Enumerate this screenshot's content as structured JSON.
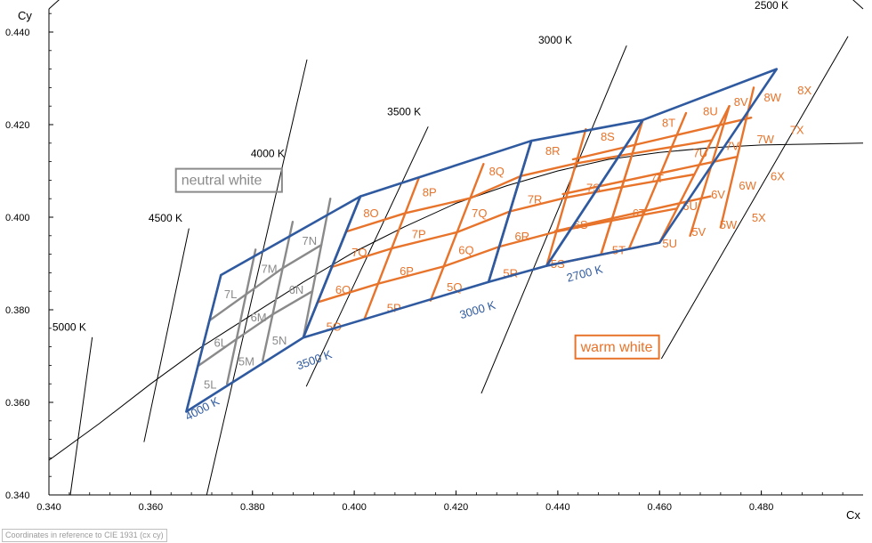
{
  "chart_data": {
    "type": "scatter",
    "title": "",
    "xlabel": "Cx",
    "ylabel": "Cy",
    "xlim": [
      0.34,
      0.5
    ],
    "ylim": [
      0.34,
      0.445
    ],
    "xticks": [
      "0.340",
      "0.360",
      "0.380",
      "0.400",
      "0.420",
      "0.440",
      "0.460",
      "0.480"
    ],
    "yticks": [
      "0.340",
      "0.360",
      "0.380",
      "0.400",
      "0.420",
      "0.440"
    ],
    "grid": false,
    "planckian_locus": [
      [
        0.34,
        0.3475
      ],
      [
        0.35,
        0.3555
      ],
      [
        0.36,
        0.364
      ],
      [
        0.37,
        0.372
      ],
      [
        0.38,
        0.379
      ],
      [
        0.39,
        0.386
      ],
      [
        0.4,
        0.3925
      ],
      [
        0.41,
        0.398
      ],
      [
        0.42,
        0.403
      ],
      [
        0.43,
        0.4068
      ],
      [
        0.44,
        0.41
      ],
      [
        0.45,
        0.4125
      ],
      [
        0.46,
        0.414
      ],
      [
        0.47,
        0.415
      ],
      [
        0.48,
        0.4156
      ],
      [
        0.49,
        0.4158
      ],
      [
        0.5,
        0.416
      ]
    ],
    "isotherms": [
      {
        "label": "5000 K",
        "p1": [
          0.3442,
          0.34
        ],
        "p2": [
          0.3485,
          0.374
        ],
        "label_at": [
          0.344,
          0.3755
        ]
      },
      {
        "label": "4500 K",
        "p1": [
          0.3587,
          0.3515
        ],
        "p2": [
          0.3675,
          0.3975
        ],
        "label_at": [
          0.3629,
          0.399
        ]
      },
      {
        "label": "4000 K",
        "p1": [
          0.371,
          0.34
        ],
        "p2": [
          0.3907,
          0.434
        ],
        "label_at": [
          0.383,
          0.413
        ]
      },
      {
        "label": "3500 K",
        "p1": [
          0.3906,
          0.3635
        ],
        "p2": [
          0.4145,
          0.4195
        ],
        "label_at": [
          0.4098,
          0.422
        ]
      },
      {
        "label": "3000 K",
        "p1": [
          0.425,
          0.362
        ],
        "p2": [
          0.4535,
          0.437
        ],
        "label_at": [
          0.4395,
          0.4375
        ]
      },
      {
        "label": "2500 K",
        "p1": [
          0.4604,
          0.3695
        ],
        "p2": [
          0.497,
          0.439
        ],
        "label_at": [
          0.482,
          0.445
        ]
      }
    ],
    "neutral_grid": {
      "color": "#8a8a8a",
      "lower": [
        [
          0.367,
          0.358
        ],
        [
          0.375,
          0.364
        ],
        [
          0.382,
          0.369
        ],
        [
          0.39,
          0.374
        ]
      ],
      "upper": [
        [
          0.3738,
          0.3875
        ],
        [
          0.3806,
          0.393
        ],
        [
          0.3879,
          0.399
        ],
        [
          0.3953,
          0.404
        ]
      ],
      "cells": [
        {
          "label": "5L",
          "at": [
            0.3717,
            0.363
          ]
        },
        {
          "label": "5M",
          "at": [
            0.3788,
            0.368
          ]
        },
        {
          "label": "5N",
          "at": [
            0.3853,
            0.3725
          ]
        },
        {
          "label": "6L",
          "at": [
            0.3737,
            0.372
          ]
        },
        {
          "label": "6M",
          "at": [
            0.3812,
            0.3775
          ]
        },
        {
          "label": "6N",
          "at": [
            0.3886,
            0.3835
          ]
        },
        {
          "label": "7L",
          "at": [
            0.3757,
            0.3825
          ]
        },
        {
          "label": "7M",
          "at": [
            0.3833,
            0.388
          ]
        },
        {
          "label": "7N",
          "at": [
            0.3912,
            0.394
          ]
        }
      ]
    },
    "warm_grid": {
      "color": "#e8732a",
      "lower": [
        [
          0.39,
          0.374
        ],
        [
          0.402,
          0.378
        ],
        [
          0.415,
          0.382
        ],
        [
          0.4264,
          0.386
        ],
        [
          0.4378,
          0.3895
        ],
        [
          0.4485,
          0.392
        ],
        [
          0.46,
          0.3945
        ]
      ],
      "upper": [
        [
          0.4012,
          0.4045
        ],
        [
          0.4127,
          0.4085
        ],
        [
          0.4254,
          0.4115
        ],
        [
          0.4348,
          0.4165
        ],
        [
          0.4455,
          0.419
        ],
        [
          0.4567,
          0.421
        ],
        [
          0.4737,
          0.424
        ],
        [
          0.483,
          0.432
        ]
      ],
      "cells": [
        {
          "label": "5O",
          "at": [
            0.396,
            0.3755
          ]
        },
        {
          "label": "5P",
          "at": [
            0.4078,
            0.3795
          ]
        },
        {
          "label": "5Q",
          "at": [
            0.4197,
            0.384
          ]
        },
        {
          "label": "5R",
          "at": [
            0.4307,
            0.387
          ]
        },
        {
          "label": "5S",
          "at": [
            0.44,
            0.389
          ]
        },
        {
          "label": "5T",
          "at": [
            0.452,
            0.392
          ]
        },
        {
          "label": "6O",
          "at": [
            0.3978,
            0.3835
          ]
        },
        {
          "label": "6P",
          "at": [
            0.4103,
            0.3875
          ]
        },
        {
          "label": "6Q",
          "at": [
            0.422,
            0.392
          ]
        },
        {
          "label": "6R",
          "at": [
            0.433,
            0.395
          ]
        },
        {
          "label": "6S",
          "at": [
            0.4445,
            0.3975
          ]
        },
        {
          "label": "6T",
          "at": [
            0.456,
            0.4
          ]
        },
        {
          "label": "7O",
          "at": [
            0.401,
            0.3915
          ]
        },
        {
          "label": "7P",
          "at": [
            0.4127,
            0.3955
          ]
        },
        {
          "label": "7Q",
          "at": [
            0.4246,
            0.4
          ]
        },
        {
          "label": "7R",
          "at": [
            0.4355,
            0.403
          ]
        },
        {
          "label": "7S",
          "at": [
            0.447,
            0.4055
          ]
        },
        {
          "label": "7T",
          "at": [
            0.4595,
            0.4075
          ]
        },
        {
          "label": "8O",
          "at": [
            0.4033,
            0.4
          ]
        },
        {
          "label": "8P",
          "at": [
            0.4148,
            0.4045
          ]
        },
        {
          "label": "8Q",
          "at": [
            0.428,
            0.409
          ]
        },
        {
          "label": "8R",
          "at": [
            0.439,
            0.4135
          ]
        },
        {
          "label": "8S",
          "at": [
            0.4498,
            0.4165
          ]
        },
        {
          "label": "8T",
          "at": [
            0.4618,
            0.4195
          ]
        }
      ]
    },
    "warm_grid_2": {
      "lower": [
        [
          0.4378,
          0.3895
        ],
        [
          0.4485,
          0.392
        ],
        [
          0.46,
          0.3945
        ]
      ],
      "cells": [
        {
          "label": "5U",
          "at": [
            0.462,
            0.3935
          ]
        },
        {
          "label": "5V",
          "at": [
            0.4677,
            0.396
          ]
        },
        {
          "label": "5W",
          "at": [
            0.4735,
            0.3975
          ]
        },
        {
          "label": "5X",
          "at": [
            0.4795,
            0.399
          ]
        },
        {
          "label": "6U",
          "at": [
            0.466,
            0.4015
          ]
        },
        {
          "label": "6V",
          "at": [
            0.4715,
            0.404
          ]
        },
        {
          "label": "6W",
          "at": [
            0.4773,
            0.406
          ]
        },
        {
          "label": "6X",
          "at": [
            0.4832,
            0.408
          ]
        },
        {
          "label": "7U",
          "at": [
            0.468,
            0.413
          ]
        },
        {
          "label": "7V",
          "at": [
            0.4743,
            0.4145
          ]
        },
        {
          "label": "7W",
          "at": [
            0.4808,
            0.416
          ]
        },
        {
          "label": "7X",
          "at": [
            0.487,
            0.418
          ]
        },
        {
          "label": "8U",
          "at": [
            0.47,
            0.422
          ]
        },
        {
          "label": "8V",
          "at": [
            0.476,
            0.424
          ]
        },
        {
          "label": "8W",
          "at": [
            0.4822,
            0.425
          ]
        },
        {
          "label": "8X",
          "at": [
            0.4885,
            0.4265
          ]
        }
      ]
    },
    "blue_outlines": {
      "color": "#2f5aa0",
      "regions": [
        [
          [
            0.367,
            0.358
          ],
          [
            0.3738,
            0.3875
          ],
          [
            0.4012,
            0.4045
          ],
          [
            0.39,
            0.374
          ]
        ],
        [
          [
            0.39,
            0.374
          ],
          [
            0.4012,
            0.4045
          ],
          [
            0.4348,
            0.4165
          ],
          [
            0.4264,
            0.386
          ]
        ],
        [
          [
            0.4264,
            0.386
          ],
          [
            0.4348,
            0.4165
          ],
          [
            0.4567,
            0.421
          ],
          [
            0.4378,
            0.3895
          ]
        ],
        [
          [
            0.4378,
            0.3895
          ],
          [
            0.4567,
            0.421
          ],
          [
            0.483,
            0.432
          ],
          [
            0.46,
            0.3945
          ]
        ]
      ]
    },
    "edge_labels": [
      {
        "text": "4000 K",
        "at": [
          0.3673,
          0.356
        ],
        "angle": -28
      },
      {
        "text": "3500 K",
        "at": [
          0.389,
          0.367
        ],
        "angle": -20
      },
      {
        "text": "3000 K",
        "at": [
          0.421,
          0.378
        ],
        "angle": -17
      },
      {
        "text": "2700 K",
        "at": [
          0.442,
          0.386
        ],
        "angle": -15
      }
    ],
    "annotations": [
      {
        "text": "neutral white",
        "at": [
          0.366,
          0.407
        ],
        "color": "#8a8a8a"
      },
      {
        "text": "warm white",
        "at": [
          0.4445,
          0.371
        ],
        "color": "#e8732a"
      }
    ]
  },
  "footnote": "Coordinates in reference to CIE 1931 (cx cy)"
}
